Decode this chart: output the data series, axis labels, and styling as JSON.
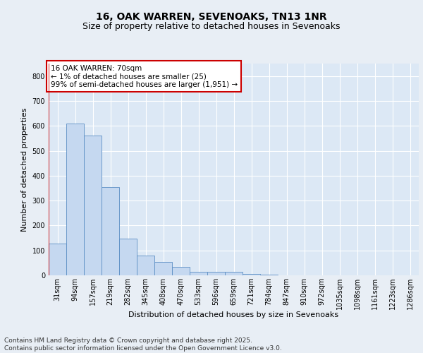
{
  "title_line1": "16, OAK WARREN, SEVENOAKS, TN13 1NR",
  "title_line2": "Size of property relative to detached houses in Sevenoaks",
  "xlabel": "Distribution of detached houses by size in Sevenoaks",
  "ylabel": "Number of detached properties",
  "bar_color": "#c5d8f0",
  "bar_edge_color": "#5b8ec4",
  "categories": [
    "31sqm",
    "94sqm",
    "157sqm",
    "219sqm",
    "282sqm",
    "345sqm",
    "408sqm",
    "470sqm",
    "533sqm",
    "596sqm",
    "659sqm",
    "721sqm",
    "784sqm",
    "847sqm",
    "910sqm",
    "972sqm",
    "1035sqm",
    "1098sqm",
    "1161sqm",
    "1223sqm",
    "1286sqm"
  ],
  "values": [
    128,
    608,
    562,
    355,
    148,
    78,
    55,
    35,
    15,
    13,
    13,
    5,
    3,
    0,
    0,
    0,
    0,
    0,
    0,
    0,
    0
  ],
  "ylim": [
    0,
    850
  ],
  "yticks": [
    0,
    100,
    200,
    300,
    400,
    500,
    600,
    700,
    800
  ],
  "annotation_text": "16 OAK WARREN: 70sqm\n← 1% of detached houses are smaller (25)\n99% of semi-detached houses are larger (1,951) →",
  "annotation_box_color": "#ffffff",
  "annotation_box_edge_color": "#cc0000",
  "marker_color": "#cc0000",
  "background_color": "#dce8f5",
  "grid_color": "#ffffff",
  "fig_background": "#e8eef5",
  "footer_line1": "Contains HM Land Registry data © Crown copyright and database right 2025.",
  "footer_line2": "Contains public sector information licensed under the Open Government Licence v3.0.",
  "title_fontsize": 10,
  "subtitle_fontsize": 9,
  "axis_label_fontsize": 8,
  "tick_fontsize": 7,
  "annotation_fontsize": 7.5,
  "footer_fontsize": 6.5
}
